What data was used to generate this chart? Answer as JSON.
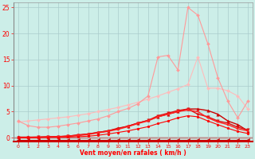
{
  "title": "",
  "xlabel": "Vent moyen/en rafales ( km/h )",
  "ylabel": "",
  "xlim": [
    -0.5,
    23.5
  ],
  "ylim": [
    -0.8,
    26
  ],
  "yticks": [
    0,
    5,
    10,
    15,
    20,
    25
  ],
  "xticks": [
    0,
    1,
    2,
    3,
    4,
    5,
    6,
    7,
    8,
    9,
    10,
    11,
    12,
    13,
    14,
    15,
    16,
    17,
    18,
    19,
    20,
    21,
    22,
    23
  ],
  "background_color": "#cceee8",
  "grid_color": "#aacccc",
  "series": [
    {
      "x": [
        0,
        1,
        2,
        3,
        4,
        5,
        6,
        7,
        8,
        9,
        10,
        11,
        12,
        13,
        14,
        15,
        16,
        17,
        18,
        19,
        20,
        21,
        22,
        23
      ],
      "y": [
        3.0,
        3.2,
        3.4,
        3.6,
        3.8,
        4.0,
        4.3,
        4.6,
        5.0,
        5.4,
        5.8,
        6.3,
        6.8,
        7.4,
        8.0,
        8.7,
        9.4,
        10.2,
        15.5,
        9.5,
        9.5,
        9.0,
        8.0,
        5.5
      ],
      "color": "#ffbbbb",
      "marker": "D",
      "markersize": 2,
      "linewidth": 0.8
    },
    {
      "x": [
        0,
        1,
        2,
        3,
        4,
        5,
        6,
        7,
        8,
        9,
        10,
        11,
        12,
        13,
        14,
        15,
        16,
        17,
        18,
        19,
        20,
        21,
        22,
        23
      ],
      "y": [
        3.2,
        2.3,
        2.0,
        2.0,
        2.2,
        2.5,
        2.8,
        3.2,
        3.6,
        4.2,
        5.0,
        5.6,
        6.5,
        8.0,
        15.5,
        15.8,
        13.0,
        25.0,
        23.5,
        18.0,
        11.5,
        7.0,
        3.8,
        7.0
      ],
      "color": "#ff9999",
      "marker": "D",
      "markersize": 2,
      "linewidth": 0.8
    },
    {
      "x": [
        0,
        1,
        2,
        3,
        4,
        5,
        6,
        7,
        8,
        9,
        10,
        11,
        12,
        13,
        14,
        15,
        16,
        17,
        18,
        19,
        20,
        21,
        22,
        23
      ],
      "y": [
        0.1,
        0.1,
        0.1,
        0.15,
        0.2,
        0.3,
        0.5,
        0.7,
        1.0,
        1.3,
        1.8,
        2.2,
        2.8,
        3.3,
        4.0,
        4.5,
        5.0,
        5.5,
        5.5,
        5.2,
        4.5,
        3.2,
        2.5,
        1.3
      ],
      "color": "#cc0000",
      "marker": "^",
      "markersize": 2.5,
      "linewidth": 1.0
    },
    {
      "x": [
        0,
        1,
        2,
        3,
        4,
        5,
        6,
        7,
        8,
        9,
        10,
        11,
        12,
        13,
        14,
        15,
        16,
        17,
        18,
        19,
        20,
        21,
        22,
        23
      ],
      "y": [
        0.05,
        0.05,
        0.1,
        0.15,
        0.2,
        0.3,
        0.5,
        0.7,
        1.0,
        1.3,
        1.7,
        2.2,
        2.8,
        3.3,
        4.2,
        4.7,
        5.2,
        5.5,
        4.5,
        4.0,
        3.2,
        2.8,
        2.0,
        1.5
      ],
      "color": "#dd1111",
      "marker": "v",
      "markersize": 2.5,
      "linewidth": 1.0
    },
    {
      "x": [
        0,
        1,
        2,
        3,
        4,
        5,
        6,
        7,
        8,
        9,
        10,
        11,
        12,
        13,
        14,
        15,
        16,
        17,
        18,
        19,
        20,
        21,
        22,
        23
      ],
      "y": [
        0.05,
        0.05,
        0.08,
        0.12,
        0.18,
        0.25,
        0.4,
        0.6,
        0.9,
        1.2,
        1.6,
        2.1,
        2.7,
        3.2,
        4.0,
        4.5,
        5.0,
        5.3,
        5.0,
        3.8,
        3.0,
        2.5,
        1.7,
        1.3
      ],
      "color": "#ff2222",
      "marker": "s",
      "markersize": 2,
      "linewidth": 1.0
    },
    {
      "x": [
        0,
        1,
        2,
        3,
        4,
        5,
        6,
        7,
        8,
        9,
        10,
        11,
        12,
        13,
        14,
        15,
        16,
        17,
        18,
        19,
        20,
        21,
        22,
        23
      ],
      "y": [
        0.02,
        0.02,
        0.03,
        0.05,
        0.07,
        0.1,
        0.18,
        0.28,
        0.45,
        0.7,
        1.0,
        1.3,
        1.7,
        2.1,
        2.7,
        3.2,
        3.8,
        4.2,
        4.0,
        3.2,
        2.5,
        1.8,
        1.2,
        0.8
      ],
      "color": "#ff0000",
      "marker": "o",
      "markersize": 2,
      "linewidth": 0.8
    },
    {
      "x": [
        0,
        1,
        2,
        3,
        4,
        5,
        6,
        7,
        8,
        9,
        10,
        11,
        12,
        13,
        14,
        15,
        16,
        17,
        18,
        19,
        20,
        21,
        22,
        23
      ],
      "y": [
        -0.4,
        -0.4,
        -0.4,
        -0.4,
        -0.4,
        -0.4,
        -0.4,
        -0.4,
        -0.4,
        -0.4,
        -0.4,
        -0.4,
        -0.4,
        -0.4,
        -0.4,
        -0.4,
        -0.4,
        -0.4,
        -0.4,
        -0.4,
        -0.4,
        -0.4,
        -0.4,
        -0.4
      ],
      "color": "#cc0000",
      "marker": "<",
      "markersize": 3,
      "linewidth": 0.8
    }
  ]
}
